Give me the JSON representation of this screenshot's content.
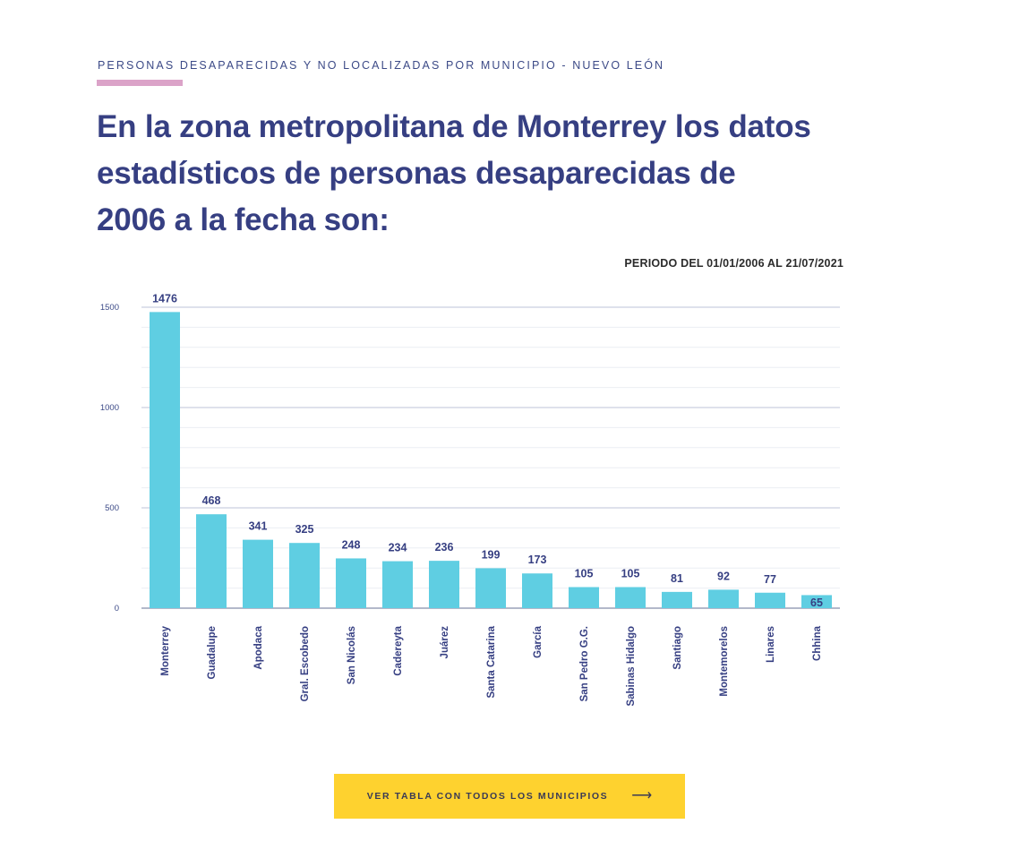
{
  "kicker": "PERSONAS DESAPARECIDAS Y NO LOCALIZADAS POR MUNICIPIO - NUEVO LEÓN",
  "headline": "En la zona metropolitana de Monterrey los datos estadísticos de personas desaparecidas de 2006 a la fecha son:",
  "period": "PERIODO DEL 01/01/2006 AL 21/07/2021",
  "cta": {
    "label": "VER TABLA CON TODOS LOS MUNICIPIOS",
    "icon": "arrow-right-icon"
  },
  "colors": {
    "bar": "#5fcee2",
    "text": "#363f82",
    "accent": "#dba3c8",
    "button": "#fed22f"
  },
  "chart_data": {
    "type": "bar",
    "categories": [
      "Monterrey",
      "Guadalupe",
      "Apodaca",
      "Gral. Escobedo",
      "San Nicolás",
      "Cadereyta",
      "Juárez",
      "Santa Catarina",
      "García",
      "San Pedro G.G.",
      "Sabinas Hidalgo",
      "Santiago",
      "Montemorelos",
      "Linares",
      "Chhina"
    ],
    "values": [
      1476,
      468,
      341,
      325,
      248,
      234,
      236,
      199,
      173,
      105,
      105,
      81,
      92,
      77,
      65
    ],
    "labels": [
      "1476",
      "468",
      "341",
      "325",
      "248",
      "234",
      "236",
      "199",
      "173",
      "105",
      "105",
      "81",
      "92",
      "77",
      "65"
    ],
    "yticks": [
      0,
      500,
      1000,
      1500
    ],
    "ylim": [
      0,
      1500
    ],
    "title": "",
    "xlabel": "",
    "ylabel": ""
  }
}
